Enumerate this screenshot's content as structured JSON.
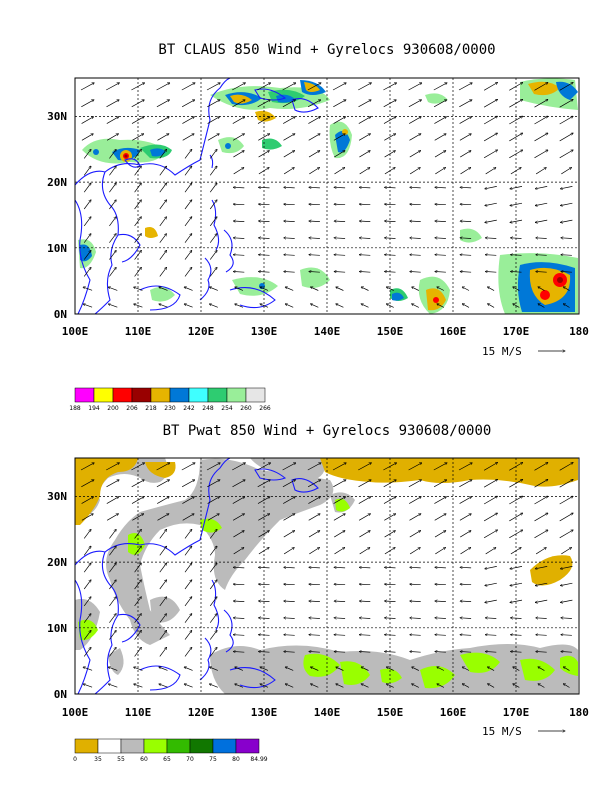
{
  "panels": [
    {
      "title": "BT CLAUS 850 Wind + Gyrelocs 930608/0000",
      "lat_labels": [
        "30N",
        "20N",
        "10N",
        "0N"
      ],
      "lon_labels": [
        "100E",
        "110E",
        "120E",
        "130E",
        "140E",
        "150E",
        "160E",
        "170E",
        "180"
      ],
      "ref_vector": "15 M/S",
      "colorbar": {
        "colors": [
          "#ff00ff",
          "#ffff00",
          "#ff0000",
          "#990000",
          "#e6b400",
          "#0078d7",
          "#3fffff",
          "#2ecc71",
          "#99ee99",
          "#e6e6e6"
        ],
        "labels": [
          "188",
          "194",
          "200",
          "206",
          "218",
          "230",
          "242",
          "248",
          "254",
          "260",
          "266"
        ]
      }
    },
    {
      "title": "BT Pwat 850 Wind + Gyrelocs 930608/0000",
      "lat_labels": [
        "30N",
        "20N",
        "10N",
        "0N"
      ],
      "lon_labels": [
        "100E",
        "110E",
        "120E",
        "130E",
        "140E",
        "150E",
        "160E",
        "170E",
        "180"
      ],
      "ref_vector": "15 M/S",
      "colorbar": {
        "colors": [
          "#e0b000",
          "#ffffff",
          "#bbbbbb",
          "#99ff00",
          "#33bb00",
          "#117700",
          "#0070dd",
          "#8800cc"
        ],
        "labels": [
          "0",
          "35",
          "55",
          "60",
          "65",
          "70",
          "75",
          "80",
          "84.99"
        ]
      }
    }
  ],
  "map_extent": {
    "lon_min": 100,
    "lon_max": 180,
    "lat_min": 0,
    "lat_max": 36
  }
}
